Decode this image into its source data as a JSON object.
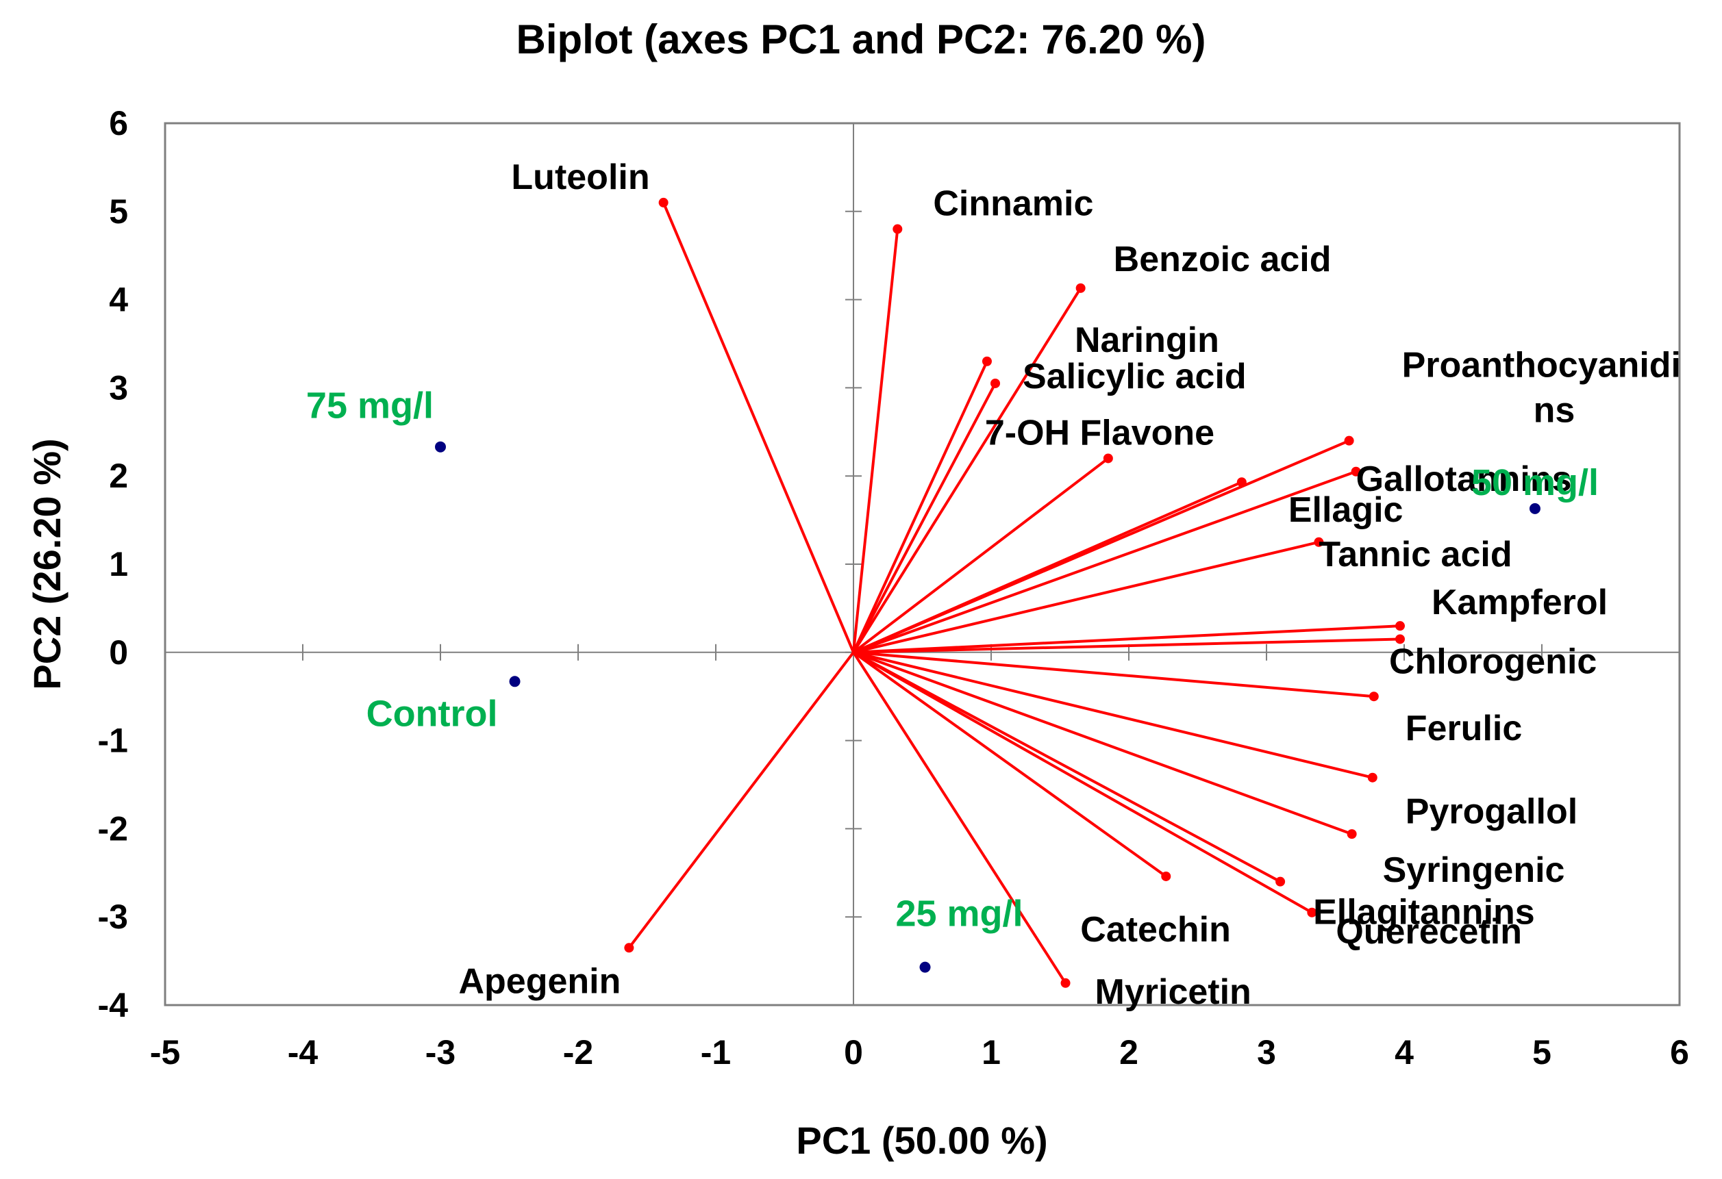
{
  "chart_data": {
    "type": "scatter",
    "subtype": "biplot",
    "title": "Biplot (axes PC1 and PC2: 76.20 %)",
    "xlabel": "PC1 (50.00 %)",
    "ylabel": "PC2 (26.20 %)",
    "xlim": [
      -5,
      6
    ],
    "ylim": [
      -4,
      6
    ],
    "x_ticks": [
      "-5",
      "-4",
      "-3",
      "-2",
      "-1",
      "0",
      "1",
      "2",
      "3",
      "4",
      "5",
      "6"
    ],
    "y_ticks": [
      "-4",
      "-3",
      "-2",
      "-1",
      "0",
      "1",
      "2",
      "3",
      "4",
      "5",
      "6"
    ],
    "vector_color": "#ff0000",
    "observation_color": "#00b050",
    "observation_point_color": "#000080",
    "variables": [
      {
        "name": "Luteolin",
        "x": -1.38,
        "y": 5.1
      },
      {
        "name": "Cinnamic",
        "x": 0.32,
        "y": 4.8
      },
      {
        "name": "Benzoic acid",
        "x": 1.65,
        "y": 4.13
      },
      {
        "name": "Naringin",
        "x": 0.97,
        "y": 3.3
      },
      {
        "name": "Salicylic acid",
        "x": 1.03,
        "y": 3.05
      },
      {
        "name": "7-OH Flavone",
        "x": 1.85,
        "y": 2.2
      },
      {
        "name": "Proanthocyanidins",
        "display": [
          "Proanthocyanidi",
          "ns"
        ],
        "x": 3.6,
        "y": 2.4
      },
      {
        "name": "Gallotannins",
        "x": 3.65,
        "y": 2.05
      },
      {
        "name": "Ellagic",
        "x": 2.82,
        "y": 1.93
      },
      {
        "name": "Tannic acid",
        "x": 3.38,
        "y": 1.25
      },
      {
        "name": "Kampferol",
        "x": 3.97,
        "y": 0.3
      },
      {
        "name": "Chlorogenic",
        "x": 3.97,
        "y": 0.15
      },
      {
        "name": "Ferulic",
        "x": 3.78,
        "y": -0.5
      },
      {
        "name": "Pyrogallol",
        "x": 3.77,
        "y": -1.42
      },
      {
        "name": "Syringenic",
        "x": 3.62,
        "y": -2.06
      },
      {
        "name": "Ellagitannins",
        "x": 3.1,
        "y": -2.6
      },
      {
        "name": "Querecetin",
        "x": 3.33,
        "y": -2.95
      },
      {
        "name": "Catechin",
        "x": 2.27,
        "y": -2.54
      },
      {
        "name": "Myricetin",
        "x": 1.54,
        "y": -3.75
      },
      {
        "name": "Apegenin",
        "x": -1.63,
        "y": -3.35
      }
    ],
    "observations": [
      {
        "name": "75 mg/l",
        "x": -3.0,
        "y": 2.33
      },
      {
        "name": "Control",
        "x": -2.46,
        "y": -0.33
      },
      {
        "name": "50 mg/l",
        "x": 4.95,
        "y": 1.63
      },
      {
        "name": "25 mg/l",
        "x": 0.52,
        "y": -3.57
      }
    ]
  }
}
